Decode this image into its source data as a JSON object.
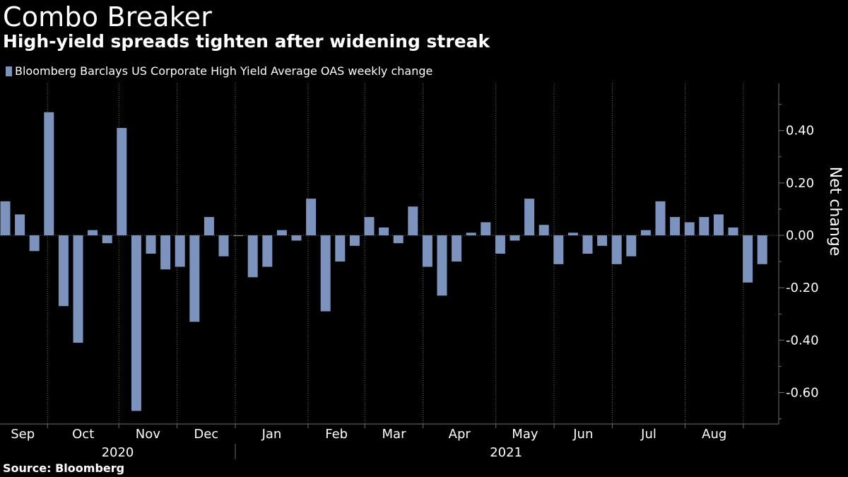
{
  "header": {
    "title": "Combo Breaker",
    "subtitle": "High-yield spreads tighten after widening streak"
  },
  "legend": {
    "label": "Bloomberg Barclays US Corporate High Yield Average OAS weekly change"
  },
  "source": "Source: Bloomberg",
  "colors": {
    "bar": "#7b93bd",
    "background": "#000000",
    "grid": "#6e6e6e",
    "text": "#ffffff"
  },
  "chart_data": {
    "type": "bar",
    "title": "Combo Breaker",
    "subtitle": "High-yield spreads tighten after widening streak",
    "ylabel": "Net change",
    "xlabel": "",
    "ylim": [
      -0.72,
      0.58
    ],
    "yticks": [
      -0.6,
      -0.4,
      -0.2,
      0.0,
      0.2,
      0.4
    ],
    "ytick_labels": [
      "-0.60",
      "-0.40",
      "-0.20",
      "0.00",
      "0.20",
      "0.40"
    ],
    "axis_side": "right",
    "grid": "vertical dotted at month boundaries",
    "months": [
      {
        "label": "Sep",
        "start_week": 0
      },
      {
        "label": "Oct",
        "start_week": 3.4
      },
      {
        "label": "Nov",
        "start_week": 8.3
      },
      {
        "label": "Dec",
        "start_week": 12.3
      },
      {
        "label": "Jan",
        "start_week": 16.3
      },
      {
        "label": "Feb",
        "start_week": 21.3
      },
      {
        "label": "Mar",
        "start_week": 25.2
      },
      {
        "label": "Apr",
        "start_week": 29.2
      },
      {
        "label": "May",
        "start_week": 34.2
      },
      {
        "label": "Jun",
        "start_week": 38.2
      },
      {
        "label": "Jul",
        "start_week": 42.2
      },
      {
        "label": "Aug",
        "start_week": 47.2
      },
      {
        "label": "",
        "start_week": 51.2
      }
    ],
    "years": [
      {
        "label": "2020",
        "from_week": 0,
        "to_week": 16.3
      },
      {
        "label": "2021",
        "from_week": 16.3,
        "to_week": 53.5
      }
    ],
    "series": [
      {
        "name": "Bloomberg Barclays US Corporate High Yield Average OAS weekly change",
        "values": [
          0.13,
          0.08,
          -0.06,
          0.47,
          -0.27,
          -0.41,
          0.02,
          -0.03,
          0.41,
          -0.67,
          -0.07,
          -0.13,
          -0.12,
          -0.33,
          0.07,
          -0.08,
          0.0,
          -0.16,
          -0.12,
          0.02,
          -0.02,
          0.14,
          -0.29,
          -0.1,
          -0.04,
          0.07,
          0.03,
          -0.03,
          0.11,
          -0.12,
          -0.23,
          -0.1,
          0.01,
          0.05,
          -0.07,
          -0.02,
          0.14,
          0.04,
          -0.11,
          0.01,
          -0.07,
          -0.04,
          -0.11,
          -0.08,
          0.02,
          0.13,
          0.07,
          0.05,
          0.07,
          0.08,
          0.03,
          -0.18,
          -0.11
        ]
      }
    ]
  }
}
